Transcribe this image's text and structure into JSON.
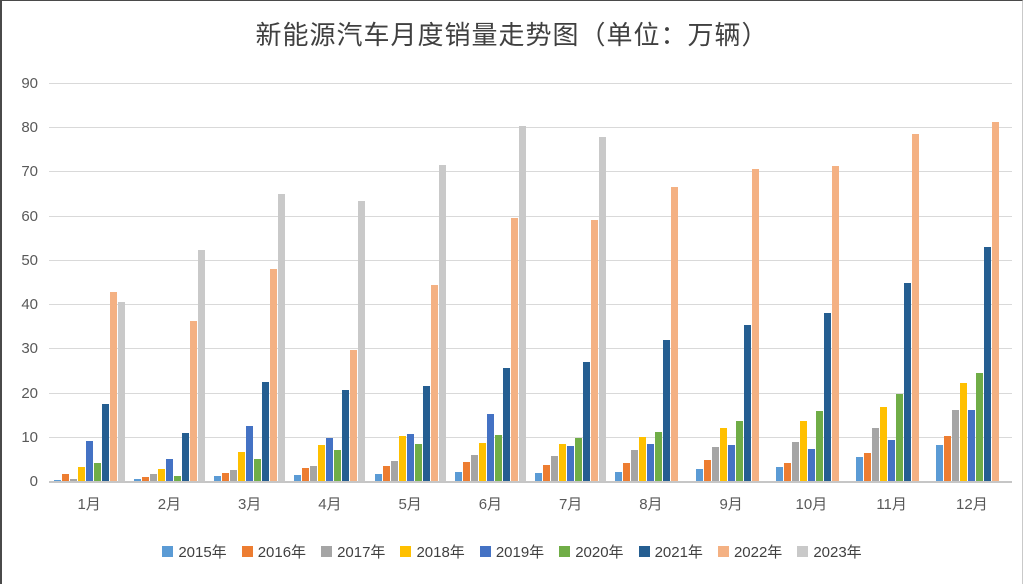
{
  "title": "新能源汽车月度销量走势图（单位：万辆）",
  "chart_data": {
    "type": "bar",
    "title": "新能源汽车月度销量走势图（单位：万辆）",
    "unit": "万辆",
    "xlabel": "",
    "ylabel": "",
    "ylim": [
      0,
      90
    ],
    "ytick_interval": 10,
    "yticks": [
      0,
      10,
      20,
      30,
      40,
      50,
      60,
      70,
      80,
      90
    ],
    "grid": true,
    "legend_position": "bottom",
    "categories": [
      "1月",
      "2月",
      "3月",
      "4月",
      "5月",
      "6月",
      "7月",
      "8月",
      "9月",
      "10月",
      "11月",
      "12月"
    ],
    "series": [
      {
        "name": "2015年",
        "color": "#5B9BD5",
        "values": [
          0.5,
          0.7,
          1.3,
          1.5,
          1.8,
          2.3,
          2.0,
          2.2,
          3.0,
          3.4,
          5.6,
          8.4
        ]
      },
      {
        "name": "2016年",
        "color": "#ED7D31",
        "values": [
          1.8,
          1.1,
          2.1,
          3.1,
          3.7,
          4.6,
          3.8,
          4.2,
          5.0,
          4.4,
          6.5,
          10.4
        ]
      },
      {
        "name": "2017年",
        "color": "#A5A5A5",
        "values": [
          0.6,
          1.7,
          2.8,
          3.6,
          4.7,
          6.1,
          5.9,
          7.2,
          8.0,
          9.1,
          12.2,
          16.3
        ]
      },
      {
        "name": "2018年",
        "color": "#FFC000",
        "values": [
          3.4,
          3.0,
          6.7,
          8.4,
          10.4,
          8.9,
          8.7,
          10.1,
          12.2,
          13.8,
          16.9,
          22.4
        ]
      },
      {
        "name": "2019年",
        "color": "#4472C4",
        "values": [
          9.2,
          5.1,
          12.6,
          10.0,
          10.8,
          15.4,
          8.1,
          8.7,
          8.3,
          7.5,
          9.6,
          16.3
        ]
      },
      {
        "name": "2020年",
        "color": "#70AD47",
        "values": [
          4.2,
          1.3,
          5.3,
          7.2,
          8.5,
          10.6,
          10.0,
          11.2,
          13.8,
          16.0,
          20.0,
          24.6
        ]
      },
      {
        "name": "2021年",
        "color": "#255E91",
        "values": [
          17.6,
          11.0,
          22.6,
          20.7,
          21.8,
          25.7,
          27.2,
          32.1,
          35.6,
          38.2,
          44.9,
          53.1
        ]
      },
      {
        "name": "2022年",
        "color": "#F4B183",
        "values": [
          43.0,
          36.5,
          48.2,
          29.9,
          44.6,
          59.6,
          59.2,
          66.6,
          70.8,
          71.4,
          78.6,
          81.4
        ]
      },
      {
        "name": "2023年",
        "color": "#C9C9C9",
        "values": [
          40.6,
          52.5,
          65.2,
          63.6,
          71.7,
          80.6,
          78.0,
          null,
          null,
          null,
          null,
          null
        ]
      }
    ]
  }
}
